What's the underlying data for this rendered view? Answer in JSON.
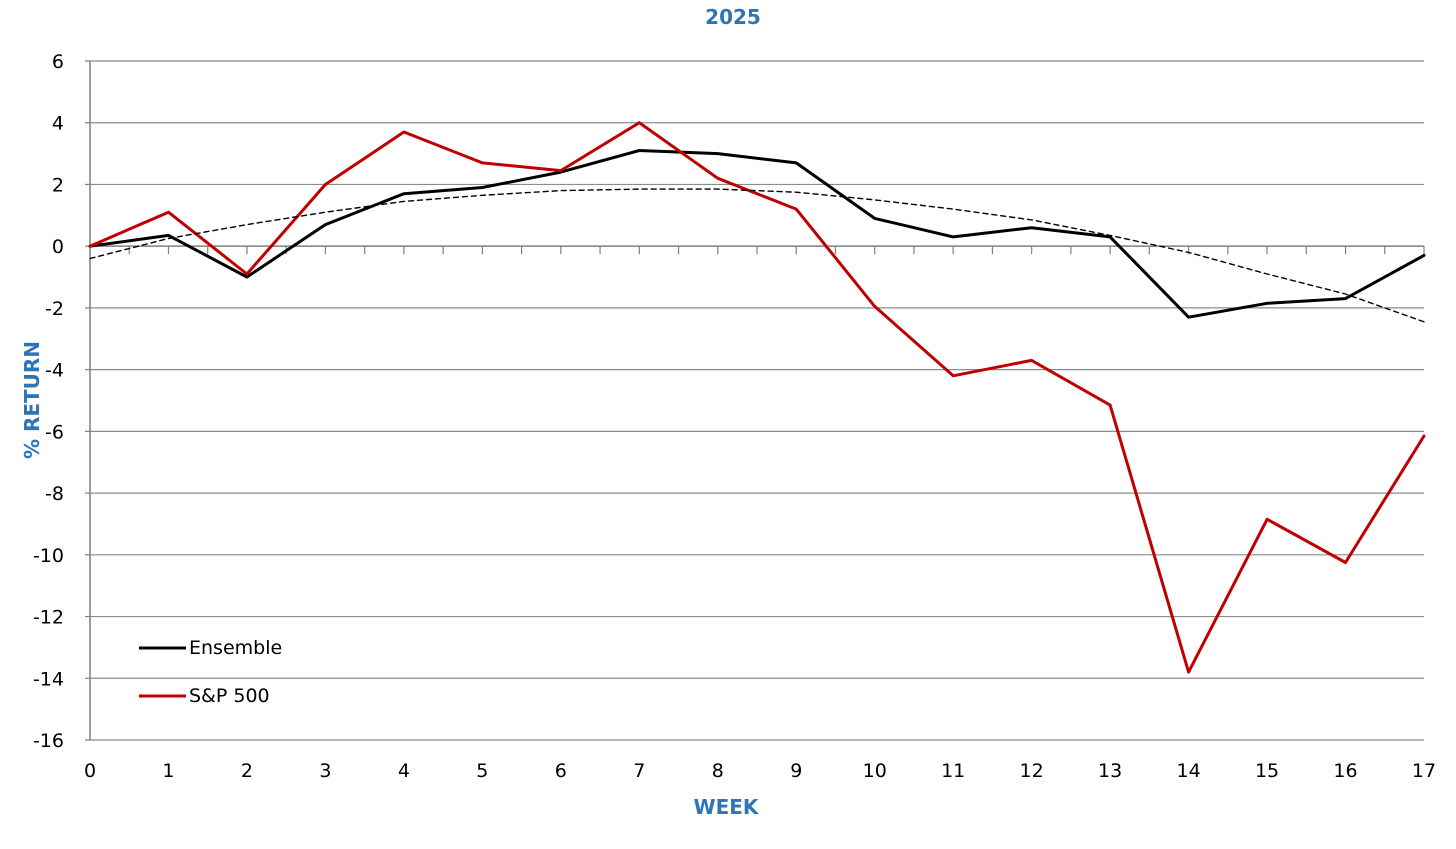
{
  "chart_data": {
    "type": "line",
    "title": "2025",
    "xlabel": "WEEK",
    "ylabel": "% RETURN",
    "x": [
      0,
      1,
      2,
      3,
      4,
      5,
      6,
      7,
      8,
      9,
      10,
      11,
      12,
      13,
      14,
      15,
      16,
      17
    ],
    "xlim": [
      0,
      17
    ],
    "ylim": [
      -16,
      6
    ],
    "yticks": [
      6,
      4,
      2,
      0,
      -2,
      -4,
      -6,
      -8,
      -10,
      -12,
      -14,
      -16
    ],
    "grid": true,
    "legend_position": "bottom-left",
    "series": [
      {
        "name": "Ensemble",
        "color": "#000000",
        "values": [
          0,
          0.35,
          -1.0,
          0.7,
          1.7,
          1.9,
          2.4,
          3.1,
          3.0,
          2.7,
          0.9,
          0.3,
          0.6,
          0.3,
          -2.3,
          -1.85,
          -1.7,
          -0.3
        ]
      },
      {
        "name": "S&P 500",
        "color": "#c00000",
        "values": [
          0,
          1.1,
          -0.9,
          2.0,
          3.7,
          2.7,
          2.45,
          4.0,
          2.2,
          1.2,
          -1.95,
          -4.2,
          -3.7,
          -5.15,
          -13.8,
          -8.85,
          -10.25,
          -6.15
        ]
      },
      {
        "trendline": true,
        "color": "#000000",
        "values": [
          -0.4,
          0.25,
          0.7,
          1.1,
          1.45,
          1.65,
          1.8,
          1.85,
          1.85,
          1.75,
          1.5,
          1.2,
          0.85,
          0.35,
          -0.2,
          -0.9,
          -1.55,
          -2.45
        ]
      }
    ]
  }
}
